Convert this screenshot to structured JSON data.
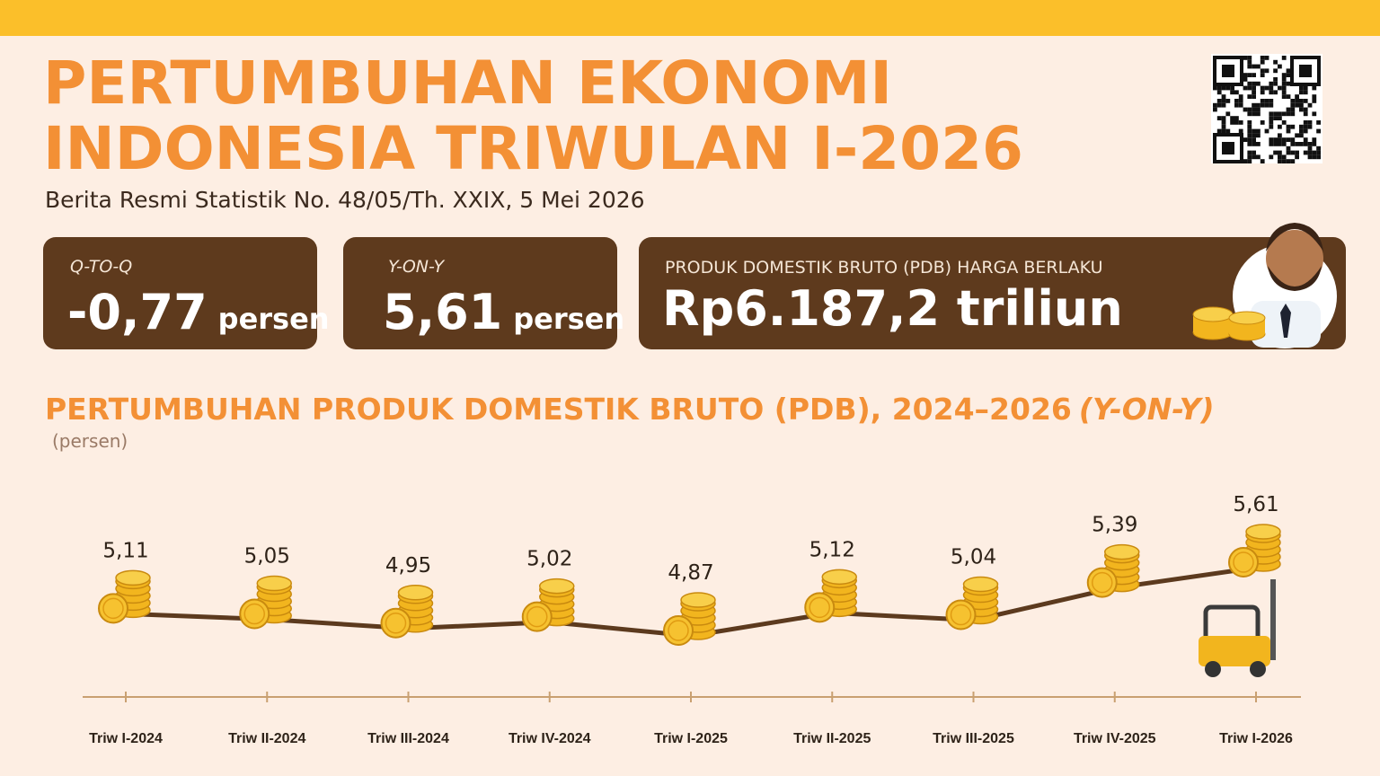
{
  "header": {
    "title_line1": "PERTUMBUHAN EKONOMI",
    "title_line2": "INDONESIA TRIWULAN I-2026",
    "subtitle": "Berita Resmi Statistik No. 48/05/Th. XXIX, 5 Mei 2026"
  },
  "cards": [
    {
      "label": "Q-TO-Q",
      "value": "-0,77",
      "unit": "persen"
    },
    {
      "label": "Y-ON-Y",
      "value": "5,61",
      "unit": "persen"
    },
    {
      "label": "PRODUK DOMESTIK BRUTO (PDB) HARGA BERLAKU",
      "value": "Rp6.187,2 triliun"
    }
  ],
  "chart_data": {
    "type": "line",
    "title": "PERTUMBUHAN PRODUK DOMESTIK BRUTO (PDB), 2024–2026",
    "title_suffix": "(Y-ON-Y)",
    "y_label": "(persen)",
    "categories": [
      "Triw I-2024",
      "Triw II-2024",
      "Triw III-2024",
      "Triw IV-2024",
      "Triw I-2025",
      "Triw II-2025",
      "Triw III-2025",
      "Triw IV-2025",
      "Triw I-2026"
    ],
    "values": [
      5.11,
      5.05,
      4.95,
      5.02,
      4.87,
      5.12,
      5.04,
      5.39,
      5.61
    ],
    "value_labels": [
      "5,11",
      "5,05",
      "4,95",
      "5,02",
      "4,87",
      "5,12",
      "5,04",
      "5,39",
      "5,61"
    ],
    "color": "#5c3a1e"
  }
}
